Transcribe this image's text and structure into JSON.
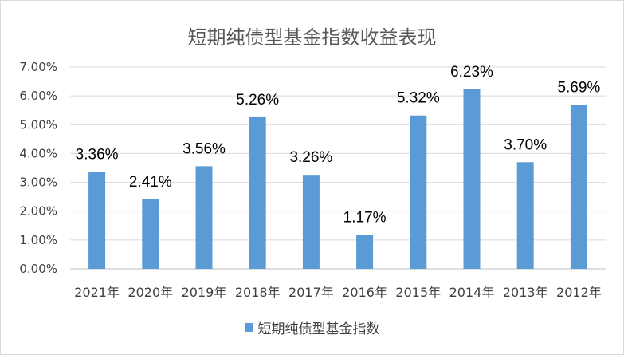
{
  "chart_data": {
    "type": "bar",
    "title": "短期纯债型基金指数收益表现",
    "categories": [
      "2021年",
      "2020年",
      "2019年",
      "2018年",
      "2017年",
      "2016年",
      "2015年",
      "2014年",
      "2013年",
      "2012年"
    ],
    "series": [
      {
        "name": "短期纯债型基金指数",
        "values": [
          3.36,
          2.41,
          3.56,
          5.26,
          3.26,
          1.17,
          5.32,
          6.23,
          3.7,
          5.69
        ],
        "labels": [
          "3.36%",
          "2.41%",
          "3.56%",
          "5.26%",
          "3.26%",
          "1.17%",
          "5.32%",
          "6.23%",
          "3.70%",
          "5.69%"
        ]
      }
    ],
    "y_ticks": [
      "0.00%",
      "1.00%",
      "2.00%",
      "3.00%",
      "4.00%",
      "5.00%",
      "6.00%",
      "7.00%"
    ],
    "ylim": [
      0,
      7
    ],
    "grid": true,
    "legend_position": "bottom",
    "bar_color": "#5b9bd5"
  }
}
